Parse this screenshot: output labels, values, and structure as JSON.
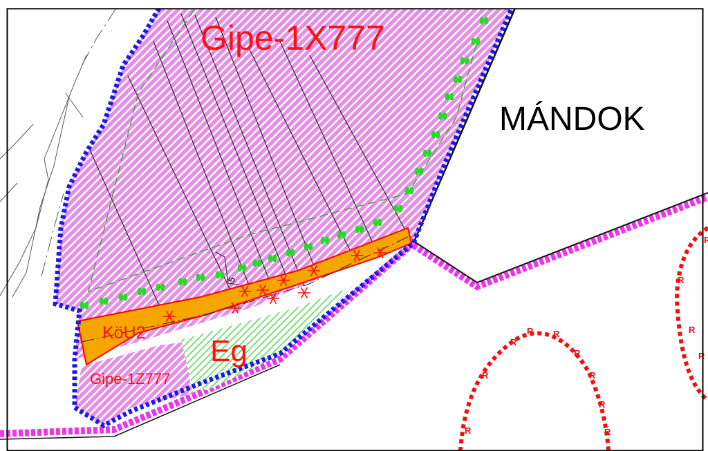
{
  "map": {
    "labels": {
      "zone_north": "Gipe-1X777",
      "place_name": "MÁNDOK",
      "road_zone": "KöU2",
      "green_zone": "Eg",
      "zone_south": "Gipe-1Z777",
      "dimension_mark": "5"
    },
    "boundary_marker": "R",
    "colors": {
      "hatch_zone": "#e58ee5",
      "hatch_line": "#ffffff",
      "road_fill": "#f7a500",
      "road_edge": "#ff0000",
      "green_hatch": "#57d957",
      "district_boundary": "#1a1ae8",
      "settlement_boundary": "#ee33ee",
      "tree_row": "#22dd22",
      "red_boundary": "#ee1111",
      "frame": "#000000"
    }
  }
}
